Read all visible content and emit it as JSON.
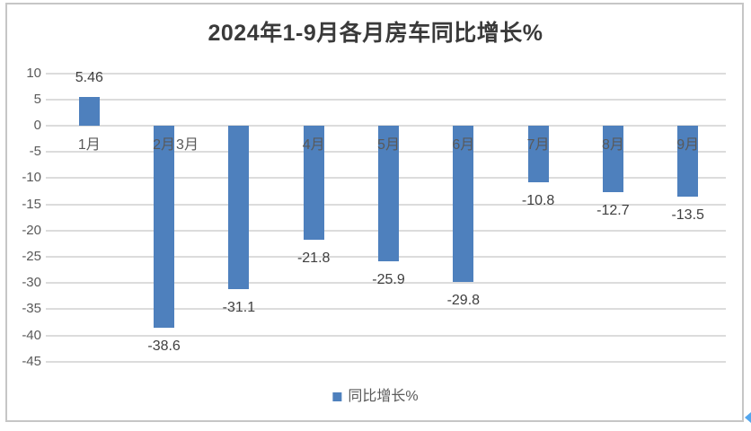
{
  "title": "2024年1-9月各月房车同比增长%",
  "legend": {
    "label": "同比增长%"
  },
  "y_axis": {
    "tick_labels": [
      "10",
      "5",
      "0",
      "-5",
      "-10",
      "-15",
      "-20",
      "-25",
      "-30",
      "-35",
      "-40",
      "-45"
    ]
  },
  "colors": {
    "bar": "#4e80bd",
    "grid": "#dcdcdc",
    "axis_text": "#595959",
    "data_label_text": "#3f3f3f",
    "title_text": "#3a3a3a",
    "frame_border": "#c6c6c6",
    "corner_glyph": "#54a7ee"
  },
  "chart_data": {
    "type": "bar",
    "title": "2024年1-9月各月房车同比增长%",
    "categories": [
      "1月",
      "2月",
      "3月",
      "4月",
      "5月",
      "6月",
      "7月",
      "8月",
      "9月"
    ],
    "series": [
      {
        "name": "同比增长%",
        "values": [
          5.46,
          -38.6,
          -31.1,
          -21.8,
          -25.9,
          -29.8,
          -10.8,
          -12.7,
          -13.5
        ]
      }
    ],
    "data_labels": [
      "5.46",
      "-38.6",
      "-31.1",
      "-21.8",
      "-25.9",
      "-29.8",
      "-10.8",
      "-12.7",
      "-13.5"
    ],
    "ylim": [
      -45,
      10
    ],
    "y_tick_step": 5,
    "grid": "horizontal",
    "legend_position": "bottom"
  }
}
